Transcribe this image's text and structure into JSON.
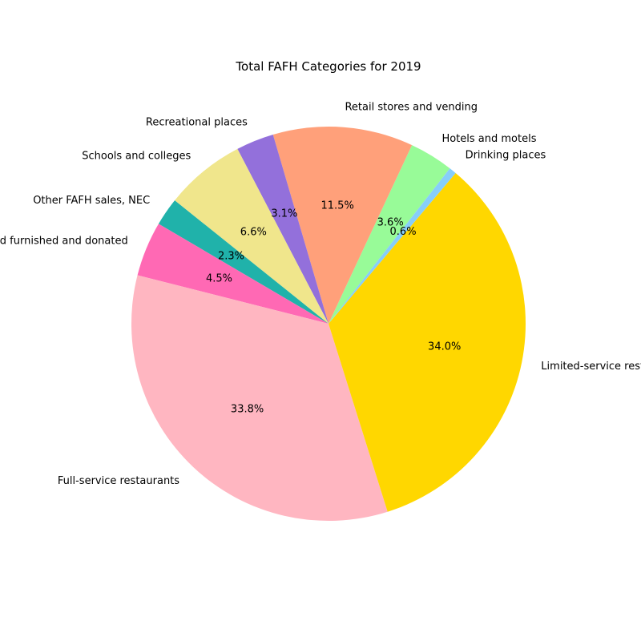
{
  "chart_data": {
    "type": "pie",
    "title": "Total FAFH Categories for 2019",
    "start_angle_deg": 52,
    "direction": "counterclockwise",
    "slices": [
      {
        "label": "Hotels and motels",
        "value": 3.6,
        "pct_label": "3.6%",
        "color": "#98fb98"
      },
      {
        "label": "Retail stores and vending",
        "value": 11.5,
        "pct_label": "11.5%",
        "color": "#ffa07a"
      },
      {
        "label": "Recreational places",
        "value": 3.1,
        "pct_label": "3.1%",
        "color": "#9370db"
      },
      {
        "label": "Schools and colleges",
        "value": 6.6,
        "pct_label": "6.6%",
        "color": "#f0e68c"
      },
      {
        "label": "Other FAFH sales, NEC",
        "value": 2.3,
        "pct_label": "2.3%",
        "color": "#20b2aa"
      },
      {
        "label": "Food furnished and donated",
        "value": 4.5,
        "pct_label": "4.5%",
        "color": "#ff69b4"
      },
      {
        "label": "Full-service restaurants",
        "value": 33.8,
        "pct_label": "33.8%",
        "color": "#ffb6c1"
      },
      {
        "label": "Limited-service restaurants",
        "value": 34.0,
        "pct_label": "34.0%",
        "color": "#ffd700"
      },
      {
        "label": "Drinking places",
        "value": 0.6,
        "pct_label": "0.6%",
        "color": "#87cefa"
      }
    ]
  }
}
